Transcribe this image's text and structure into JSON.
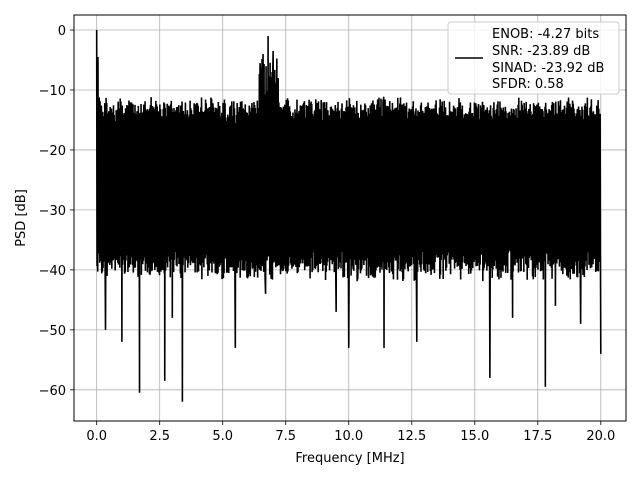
{
  "chart_data": {
    "type": "line",
    "title": "",
    "xlabel": "Frequency [MHz]",
    "ylabel": "PSD [dB]",
    "xlim": [
      -0.9,
      21.0
    ],
    "ylim": [
      -65.2,
      2.5
    ],
    "x_ticks": [
      0.0,
      2.5,
      5.0,
      7.5,
      10.0,
      12.5,
      15.0,
      17.5,
      20.0
    ],
    "x_tick_labels": [
      "0.0",
      "2.5",
      "5.0",
      "7.5",
      "10.0",
      "12.5",
      "15.0",
      "17.5",
      "20.0"
    ],
    "y_ticks": [
      0,
      -10,
      -20,
      -30,
      -40,
      -50,
      -60
    ],
    "y_tick_labels": [
      "0",
      "−10",
      "−20",
      "−30",
      "−40",
      "−50",
      "−60"
    ],
    "grid": true,
    "legend_position": "top-right",
    "line_color": "#000000",
    "series": [
      {
        "name": "ENOB: -4.27 bits\nSNR: -23.89 dB\nSINAD: -23.92 dB\nSFDR: 0.58",
        "legend_lines": [
          "ENOB: -4.27 bits",
          "SNR: -23.89 dB",
          "SINAD: -23.92 dB",
          "SFDR: 0.58"
        ],
        "x_range": [
          0.0,
          20.0
        ],
        "upper_envelope_db": -13,
        "lower_envelope_db": -38,
        "noise_peaks": [
          {
            "x": 0.0,
            "y": 0.0
          },
          {
            "x": 0.05,
            "y": -4.5
          },
          {
            "x": 0.1,
            "y": -11.5
          },
          {
            "x": 6.8,
            "y": -1.0
          },
          {
            "x": 6.6,
            "y": -4.0
          },
          {
            "x": 7.0,
            "y": -3.5
          },
          {
            "x": 6.5,
            "y": -7.0
          },
          {
            "x": 7.2,
            "y": -8.0
          }
        ],
        "notable_dips": [
          {
            "x": 0.35,
            "y": -50.0
          },
          {
            "x": 1.0,
            "y": -52.0
          },
          {
            "x": 1.7,
            "y": -60.5
          },
          {
            "x": 2.7,
            "y": -58.5
          },
          {
            "x": 3.0,
            "y": -48.0
          },
          {
            "x": 3.4,
            "y": -62.0
          },
          {
            "x": 5.5,
            "y": -53.0
          },
          {
            "x": 6.7,
            "y": -44.0
          },
          {
            "x": 9.5,
            "y": -47.0
          },
          {
            "x": 10.0,
            "y": -53.0
          },
          {
            "x": 11.4,
            "y": -53.0
          },
          {
            "x": 12.7,
            "y": -52.0
          },
          {
            "x": 15.6,
            "y": -58.0
          },
          {
            "x": 16.5,
            "y": -48.0
          },
          {
            "x": 17.8,
            "y": -59.5
          },
          {
            "x": 18.2,
            "y": -46.0
          },
          {
            "x": 19.2,
            "y": -49.0
          },
          {
            "x": 20.0,
            "y": -54.0
          }
        ]
      }
    ]
  }
}
